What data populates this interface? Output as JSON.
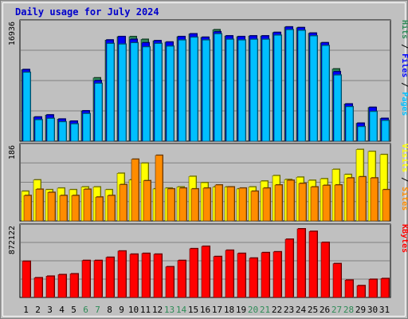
{
  "chart_data": {
    "title": "Daily usage for July 2024",
    "type": "bar",
    "categories": [
      "1",
      "2",
      "3",
      "4",
      "5",
      "6",
      "7",
      "8",
      "9",
      "10",
      "11",
      "12",
      "13",
      "14",
      "15",
      "16",
      "17",
      "18",
      "19",
      "20",
      "21",
      "22",
      "23",
      "24",
      "25",
      "26",
      "27",
      "28",
      "29",
      "30",
      "31"
    ],
    "weekend_days": [
      6,
      7,
      13,
      14,
      20,
      21,
      27,
      28
    ],
    "colors": {
      "hits": "#2e8b57",
      "files": "#0000ff",
      "pages": "#00bfff",
      "visits": "#ffff00",
      "sites": "#ff8c00",
      "kbytes": "#ff0000",
      "weekday_label": "#000000",
      "weekend_label": "#2e8b57",
      "title": "#0000cc"
    },
    "panels": [
      {
        "id": "hits-files-pages",
        "max_label": "16936",
        "ymax": 16936,
        "legend": [
          "Pages",
          "Files",
          "Hits"
        ],
        "series": [
          {
            "name": "Hits",
            "values": [
              10400,
              3500,
              3800,
              3200,
              2900,
              4400,
              9200,
              14700,
              15200,
              15200,
              14800,
              14600,
              14400,
              15200,
              15600,
              15100,
              16200,
              15300,
              15200,
              15300,
              15300,
              15800,
              16600,
              16500,
              15700,
              14300,
              10500,
              5400,
              2600,
              4900,
              3300
            ]
          },
          {
            "name": "Files",
            "values": [
              10400,
              3500,
              3800,
              3200,
              2900,
              4400,
              8800,
              14700,
              15200,
              14800,
              14300,
              14600,
              14400,
              15200,
              15600,
              15100,
              15900,
              15300,
              15200,
              15300,
              15300,
              15800,
              16600,
              16500,
              15700,
              14300,
              10100,
              5400,
              2600,
              4900,
              3300
            ]
          },
          {
            "name": "Pages",
            "values": [
              10000,
              3100,
              3300,
              2800,
              2500,
              4000,
              8400,
              14200,
              14100,
              14300,
              13700,
              14200,
              13800,
              14700,
              15100,
              14700,
              15600,
              14800,
              14700,
              14800,
              14800,
              15400,
              16200,
              16100,
              15300,
              13900,
              9600,
              5000,
              2100,
              4300,
              3000
            ]
          }
        ]
      },
      {
        "id": "visits-sites",
        "max_label": "186",
        "ymax": 186,
        "legend": [
          "Sites",
          "Visits"
        ],
        "series": [
          {
            "name": "Visits",
            "values": [
              76,
              105,
              80,
              84,
              80,
              87,
              87,
              80,
              122,
              105,
              148,
              82,
              84,
              87,
              114,
              98,
              87,
              87,
              82,
              87,
              102,
              116,
              106,
              112,
              104,
              108,
              132,
              119,
              183,
              178,
              170
            ]
          },
          {
            "name": "Sites",
            "values": [
              65,
              81,
              73,
              65,
              65,
              81,
              61,
              65,
              93,
              158,
              103,
              168,
              82,
              84,
              82,
              84,
              92,
              87,
              84,
              76,
              84,
              92,
              104,
              96,
              87,
              91,
              92,
              110,
              113,
              110,
              80
            ]
          }
        ]
      },
      {
        "id": "kbytes",
        "max_label": "872122",
        "ymax": 872122,
        "legend": [
          "KBytes"
        ],
        "series": [
          {
            "name": "KBytes",
            "values": [
              460000,
              250000,
              270000,
              290000,
              300000,
              470000,
              470000,
              510000,
              590000,
              550000,
              560000,
              550000,
              390000,
              470000,
              620000,
              650000,
              520000,
              600000,
              560000,
              500000,
              570000,
              580000,
              740000,
              872122,
              840000,
              700000,
              430000,
              220000,
              150000,
              230000,
              240000
            ]
          }
        ]
      }
    ]
  }
}
